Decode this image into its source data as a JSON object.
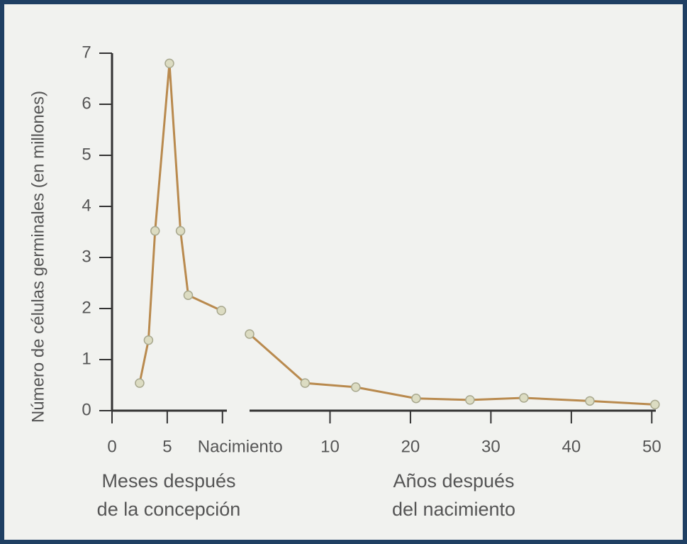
{
  "chart_data": [
    {
      "type": "line",
      "ylabel": "Número de células germinales (en millones)",
      "xlabel": [
        "Meses después",
        "de la concepción"
      ],
      "x": [
        2.5,
        3.3,
        3.9,
        5.2,
        6.2,
        6.9,
        9.9
      ],
      "series": [
        {
          "color": "#b98a4e",
          "values": [
            0.54,
            1.38,
            3.52,
            6.8,
            3.52,
            2.26,
            1.96
          ]
        }
      ],
      "xlim": [
        0,
        10.4
      ],
      "xticks": [
        0,
        5,
        {
          "value": 10,
          "label": "Nacimiento"
        }
      ],
      "ylim": [
        0,
        7
      ],
      "yticks": [
        0,
        1,
        2,
        3,
        4,
        5,
        6,
        7
      ]
    },
    {
      "type": "line",
      "xlabel": [
        "Años después",
        "del nacimiento"
      ],
      "x": [
        0,
        6.9,
        13.2,
        20.7,
        27.4,
        34.1,
        42.3,
        50.4
      ],
      "series": [
        {
          "color": "#b98a4e",
          "values": [
            1.5,
            0.54,
            0.46,
            0.24,
            0.21,
            0.25,
            0.19,
            0.12
          ]
        }
      ],
      "xlim": [
        0,
        50.5
      ],
      "xticks": [
        10,
        20,
        30,
        40,
        50
      ],
      "ylim": [
        0,
        7
      ]
    }
  ]
}
